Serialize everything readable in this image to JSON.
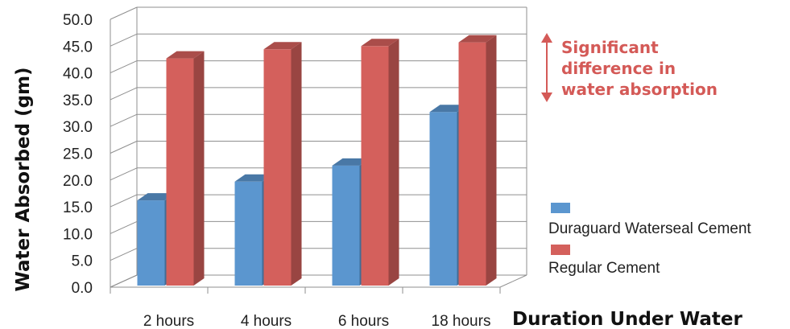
{
  "chart_data": {
    "type": "bar",
    "title": "",
    "xlabel": "Duration Under Water",
    "ylabel": "Water Absorbed (gm)",
    "ylim": [
      0,
      50
    ],
    "yticks": [
      "0.0",
      "5.0",
      "10.0",
      "15.0",
      "20.0",
      "25.0",
      "30.0",
      "35.0",
      "40.0",
      "45.0",
      "50.0"
    ],
    "categories": [
      "2 hours",
      "4 hours",
      "6 hours",
      "18 hours"
    ],
    "series": [
      {
        "name": "Duraguard Waterseal Cement",
        "values": [
          16.5,
          20.0,
          23.0,
          33.0
        ],
        "color": "#5b96cf"
      },
      {
        "name": "Regular Cement",
        "values": [
          43.0,
          44.7,
          45.3,
          46.0
        ],
        "color": "#d4605c"
      }
    ],
    "grid": true,
    "style": "3d-clustered-column",
    "legend_position": "right",
    "annotation": {
      "lines": [
        "Significant",
        "difference in",
        "water absorption"
      ],
      "color": "#d45a57",
      "icon": "double-arrow-vertical-icon"
    }
  }
}
